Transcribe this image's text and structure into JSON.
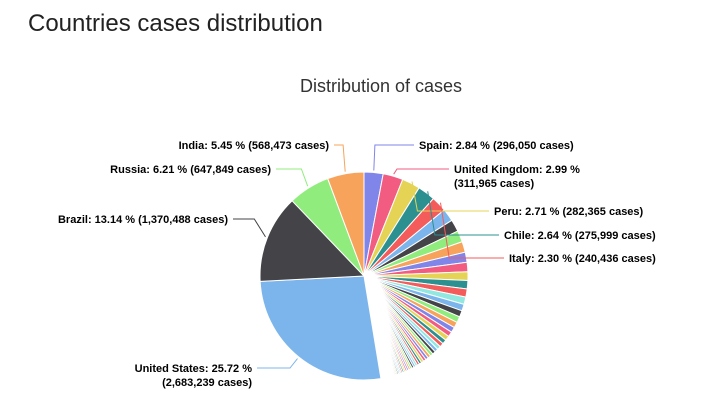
{
  "page": {
    "heading": "Countries cases distribution"
  },
  "chart_data": {
    "type": "pie",
    "title": "Distribution of cases",
    "unit_suffix": "cases",
    "labeled": [
      {
        "name": "United States",
        "percent": 25.72,
        "cases": "2,683,239",
        "color": "#7cb5ec",
        "label_line1": "United States: 25.72 %",
        "label_line2": "(2,683,239 cases)"
      },
      {
        "name": "Brazil",
        "percent": 13.14,
        "cases": "1,370,488",
        "color": "#434348",
        "label_line1": "Brazil: 13.14 % (1,370,488 cases)"
      },
      {
        "name": "Russia",
        "percent": 6.21,
        "cases": "647,849",
        "color": "#90ed7d",
        "label_line1": "Russia: 6.21 % (647,849 cases)"
      },
      {
        "name": "India",
        "percent": 5.45,
        "cases": "568,473",
        "color": "#f7a35c",
        "label_line1": "India: 5.45 % (568,473 cases)"
      },
      {
        "name": "Spain",
        "percent": 2.84,
        "cases": "296,050",
        "color": "#8085e9",
        "label_line1": "Spain: 2.84 % (296,050 cases)"
      },
      {
        "name": "United Kingdom",
        "percent": 2.99,
        "cases": "311,965",
        "color": "#f15c80",
        "label_line1": "United Kingdom: 2.99 %",
        "label_line2": "(311,965 cases)"
      },
      {
        "name": "Peru",
        "percent": 2.71,
        "cases": "282,365",
        "color": "#e4d354",
        "label_line1": "Peru: 2.71 % (282,365 cases)"
      },
      {
        "name": "Chile",
        "percent": 2.64,
        "cases": "275,999",
        "color": "#2b908f",
        "label_line1": "Chile: 2.64 % (275,999 cases)"
      },
      {
        "name": "Italy",
        "percent": 2.3,
        "cases": "240,436",
        "color": "#f45b5b",
        "label_line1": "Italy: 2.30 % (240,436 cases)"
      }
    ],
    "other_slices_percent": [
      1.9,
      1.8,
      1.7,
      1.6,
      1.5,
      1.4,
      1.3,
      1.25,
      1.2,
      1.1,
      1.0,
      0.95,
      0.9,
      0.85,
      0.8,
      0.75,
      0.7,
      0.65,
      0.6,
      0.55,
      0.5,
      0.48,
      0.46,
      0.44,
      0.42,
      0.4,
      0.38,
      0.36,
      0.34,
      0.32,
      0.3,
      0.29,
      0.28,
      0.27,
      0.26,
      0.25,
      0.24,
      0.23,
      0.22,
      0.21,
      0.2,
      0.19,
      0.18,
      0.17,
      0.16,
      0.15,
      0.14,
      0.13,
      0.12,
      0.11,
      0.1,
      0.1,
      0.09,
      0.09,
      0.08,
      0.08,
      0.07,
      0.07,
      0.06,
      0.06,
      0.05,
      0.05,
      0.05,
      0.04,
      0.04,
      0.04,
      0.03,
      0.03,
      0.03,
      0.03,
      0.02,
      0.02,
      0.02,
      0.02,
      0.02,
      0.01,
      0.01,
      0.01,
      0.01,
      0.01
    ],
    "palette": [
      "#7cb5ec",
      "#434348",
      "#90ed7d",
      "#f7a35c",
      "#8085e9",
      "#f15c80",
      "#e4d354",
      "#2b908f",
      "#f45b5b",
      "#91e8e1"
    ],
    "order": [
      "Spain",
      "United Kingdom",
      "Peru",
      "Chile",
      "Italy",
      "others",
      "United States",
      "Brazil",
      "Russia",
      "India"
    ]
  }
}
